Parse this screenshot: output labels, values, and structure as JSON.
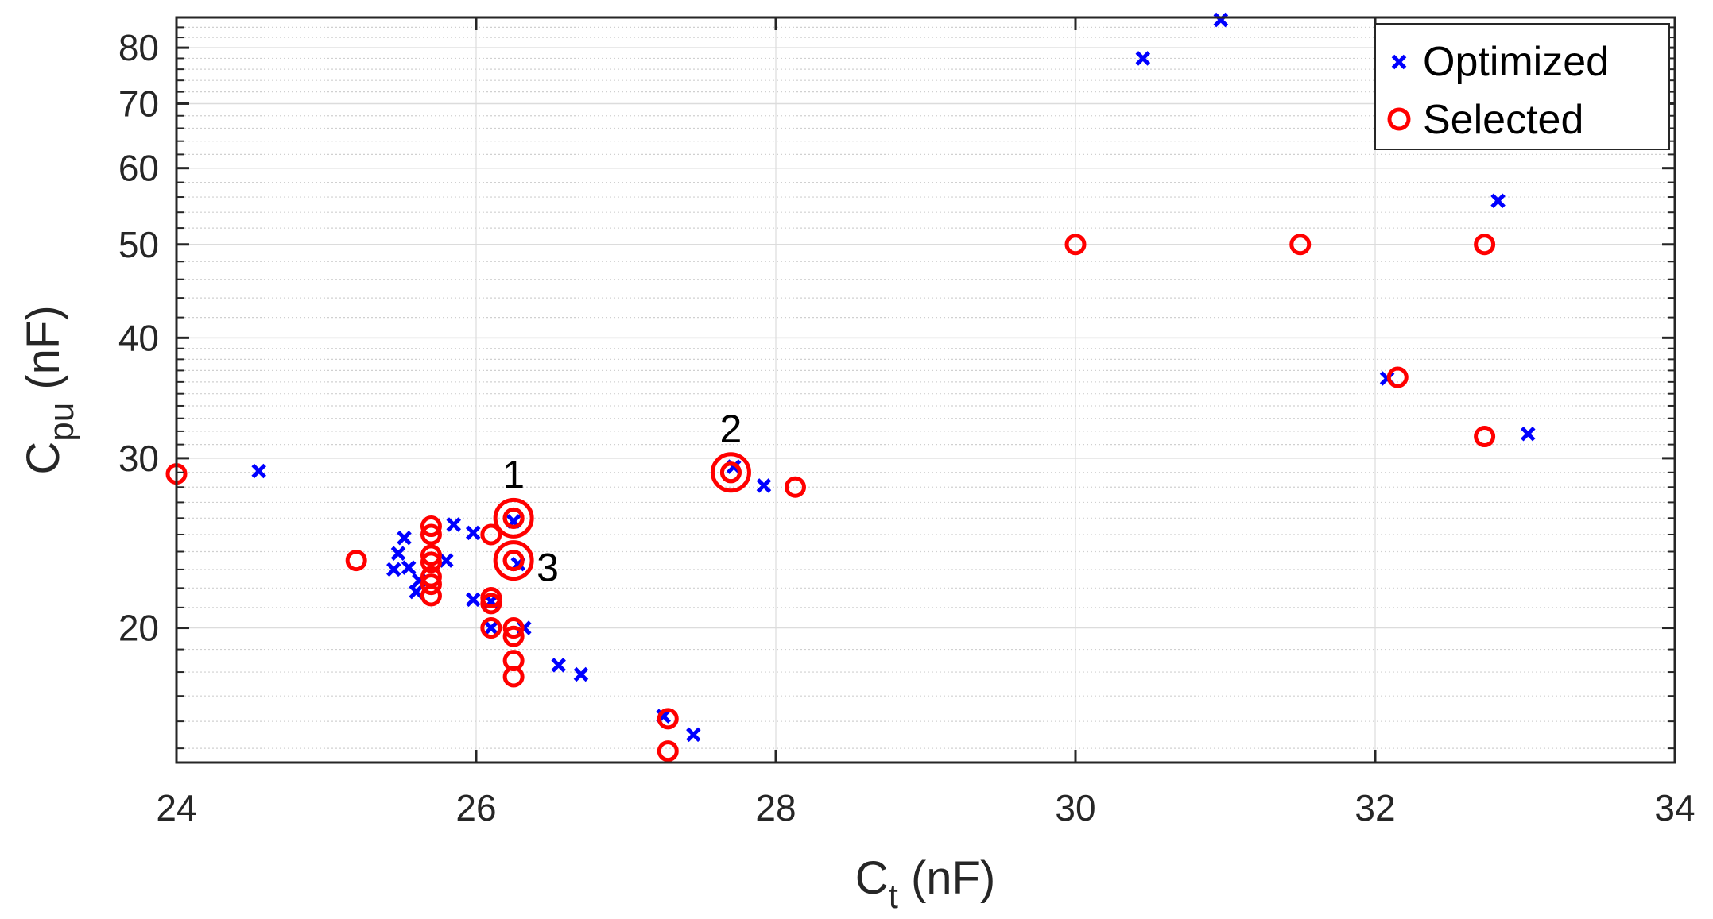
{
  "chart_data": {
    "type": "scatter",
    "xlabel_main": "C",
    "xlabel_sub": "t",
    "xlabel_unit": " (nF)",
    "ylabel_main": "C",
    "ylabel_sub": "pu",
    "ylabel_unit": " (nF)",
    "xlim": [
      24,
      34
    ],
    "ylim": [
      14.5,
      86
    ],
    "yscale": "log",
    "grid": true,
    "xticks": [
      24,
      26,
      28,
      30,
      32,
      34
    ],
    "yticks": [
      20,
      30,
      40,
      50,
      60,
      70,
      80
    ],
    "legend_position": "top-right",
    "series": [
      {
        "name": "Optimized",
        "marker": "x",
        "color": "#0000ff",
        "points": [
          [
            24.55,
            29.1
          ],
          [
            25.45,
            23.0
          ],
          [
            25.48,
            23.9
          ],
          [
            25.52,
            24.8
          ],
          [
            25.55,
            23.1
          ],
          [
            25.6,
            21.8
          ],
          [
            25.62,
            22.4
          ],
          [
            25.8,
            23.5
          ],
          [
            25.85,
            25.6
          ],
          [
            25.98,
            25.1
          ],
          [
            25.98,
            21.4
          ],
          [
            26.1,
            20.0
          ],
          [
            26.1,
            21.3
          ],
          [
            26.25,
            25.8
          ],
          [
            26.28,
            23.3
          ],
          [
            26.32,
            20.0
          ],
          [
            26.55,
            18.3
          ],
          [
            26.7,
            17.9
          ],
          [
            27.25,
            16.2
          ],
          [
            27.45,
            15.5
          ],
          [
            27.72,
            29.4
          ],
          [
            27.92,
            28.1
          ],
          [
            30.45,
            78.0
          ],
          [
            30.97,
            85.5
          ],
          [
            32.08,
            36.3
          ],
          [
            32.82,
            55.5
          ],
          [
            33.02,
            31.8
          ]
        ]
      },
      {
        "name": "Selected",
        "marker": "o",
        "color": "#ff0000",
        "points": [
          [
            24.0,
            28.9
          ],
          [
            25.2,
            23.5
          ],
          [
            25.7,
            25.5
          ],
          [
            25.7,
            25.0
          ],
          [
            25.7,
            23.8
          ],
          [
            25.7,
            23.4
          ],
          [
            25.7,
            22.6
          ],
          [
            25.7,
            22.2
          ],
          [
            25.7,
            21.6
          ],
          [
            26.1,
            25.0
          ],
          [
            26.1,
            21.5
          ],
          [
            26.1,
            21.2
          ],
          [
            26.1,
            20.0
          ],
          [
            26.25,
            20.0
          ],
          [
            26.25,
            19.6
          ],
          [
            26.25,
            18.5
          ],
          [
            26.25,
            17.8
          ],
          [
            27.28,
            16.1
          ],
          [
            27.28,
            14.9
          ],
          [
            28.13,
            28.0
          ],
          [
            30.0,
            50.0
          ],
          [
            31.5,
            50.0
          ],
          [
            32.73,
            50.0
          ],
          [
            32.15,
            36.4
          ],
          [
            32.73,
            31.6
          ],
          [
            26.25,
            26.0
          ],
          [
            26.25,
            23.5
          ],
          [
            27.7,
            29.0
          ]
        ]
      }
    ],
    "highlighted_points": [
      {
        "label": "1",
        "x": 26.25,
        "y": 26.0,
        "label_side": "above"
      },
      {
        "label": "2",
        "x": 27.7,
        "y": 29.0,
        "label_side": "above"
      },
      {
        "label": "3",
        "x": 26.25,
        "y": 23.5,
        "label_side": "right"
      }
    ]
  }
}
